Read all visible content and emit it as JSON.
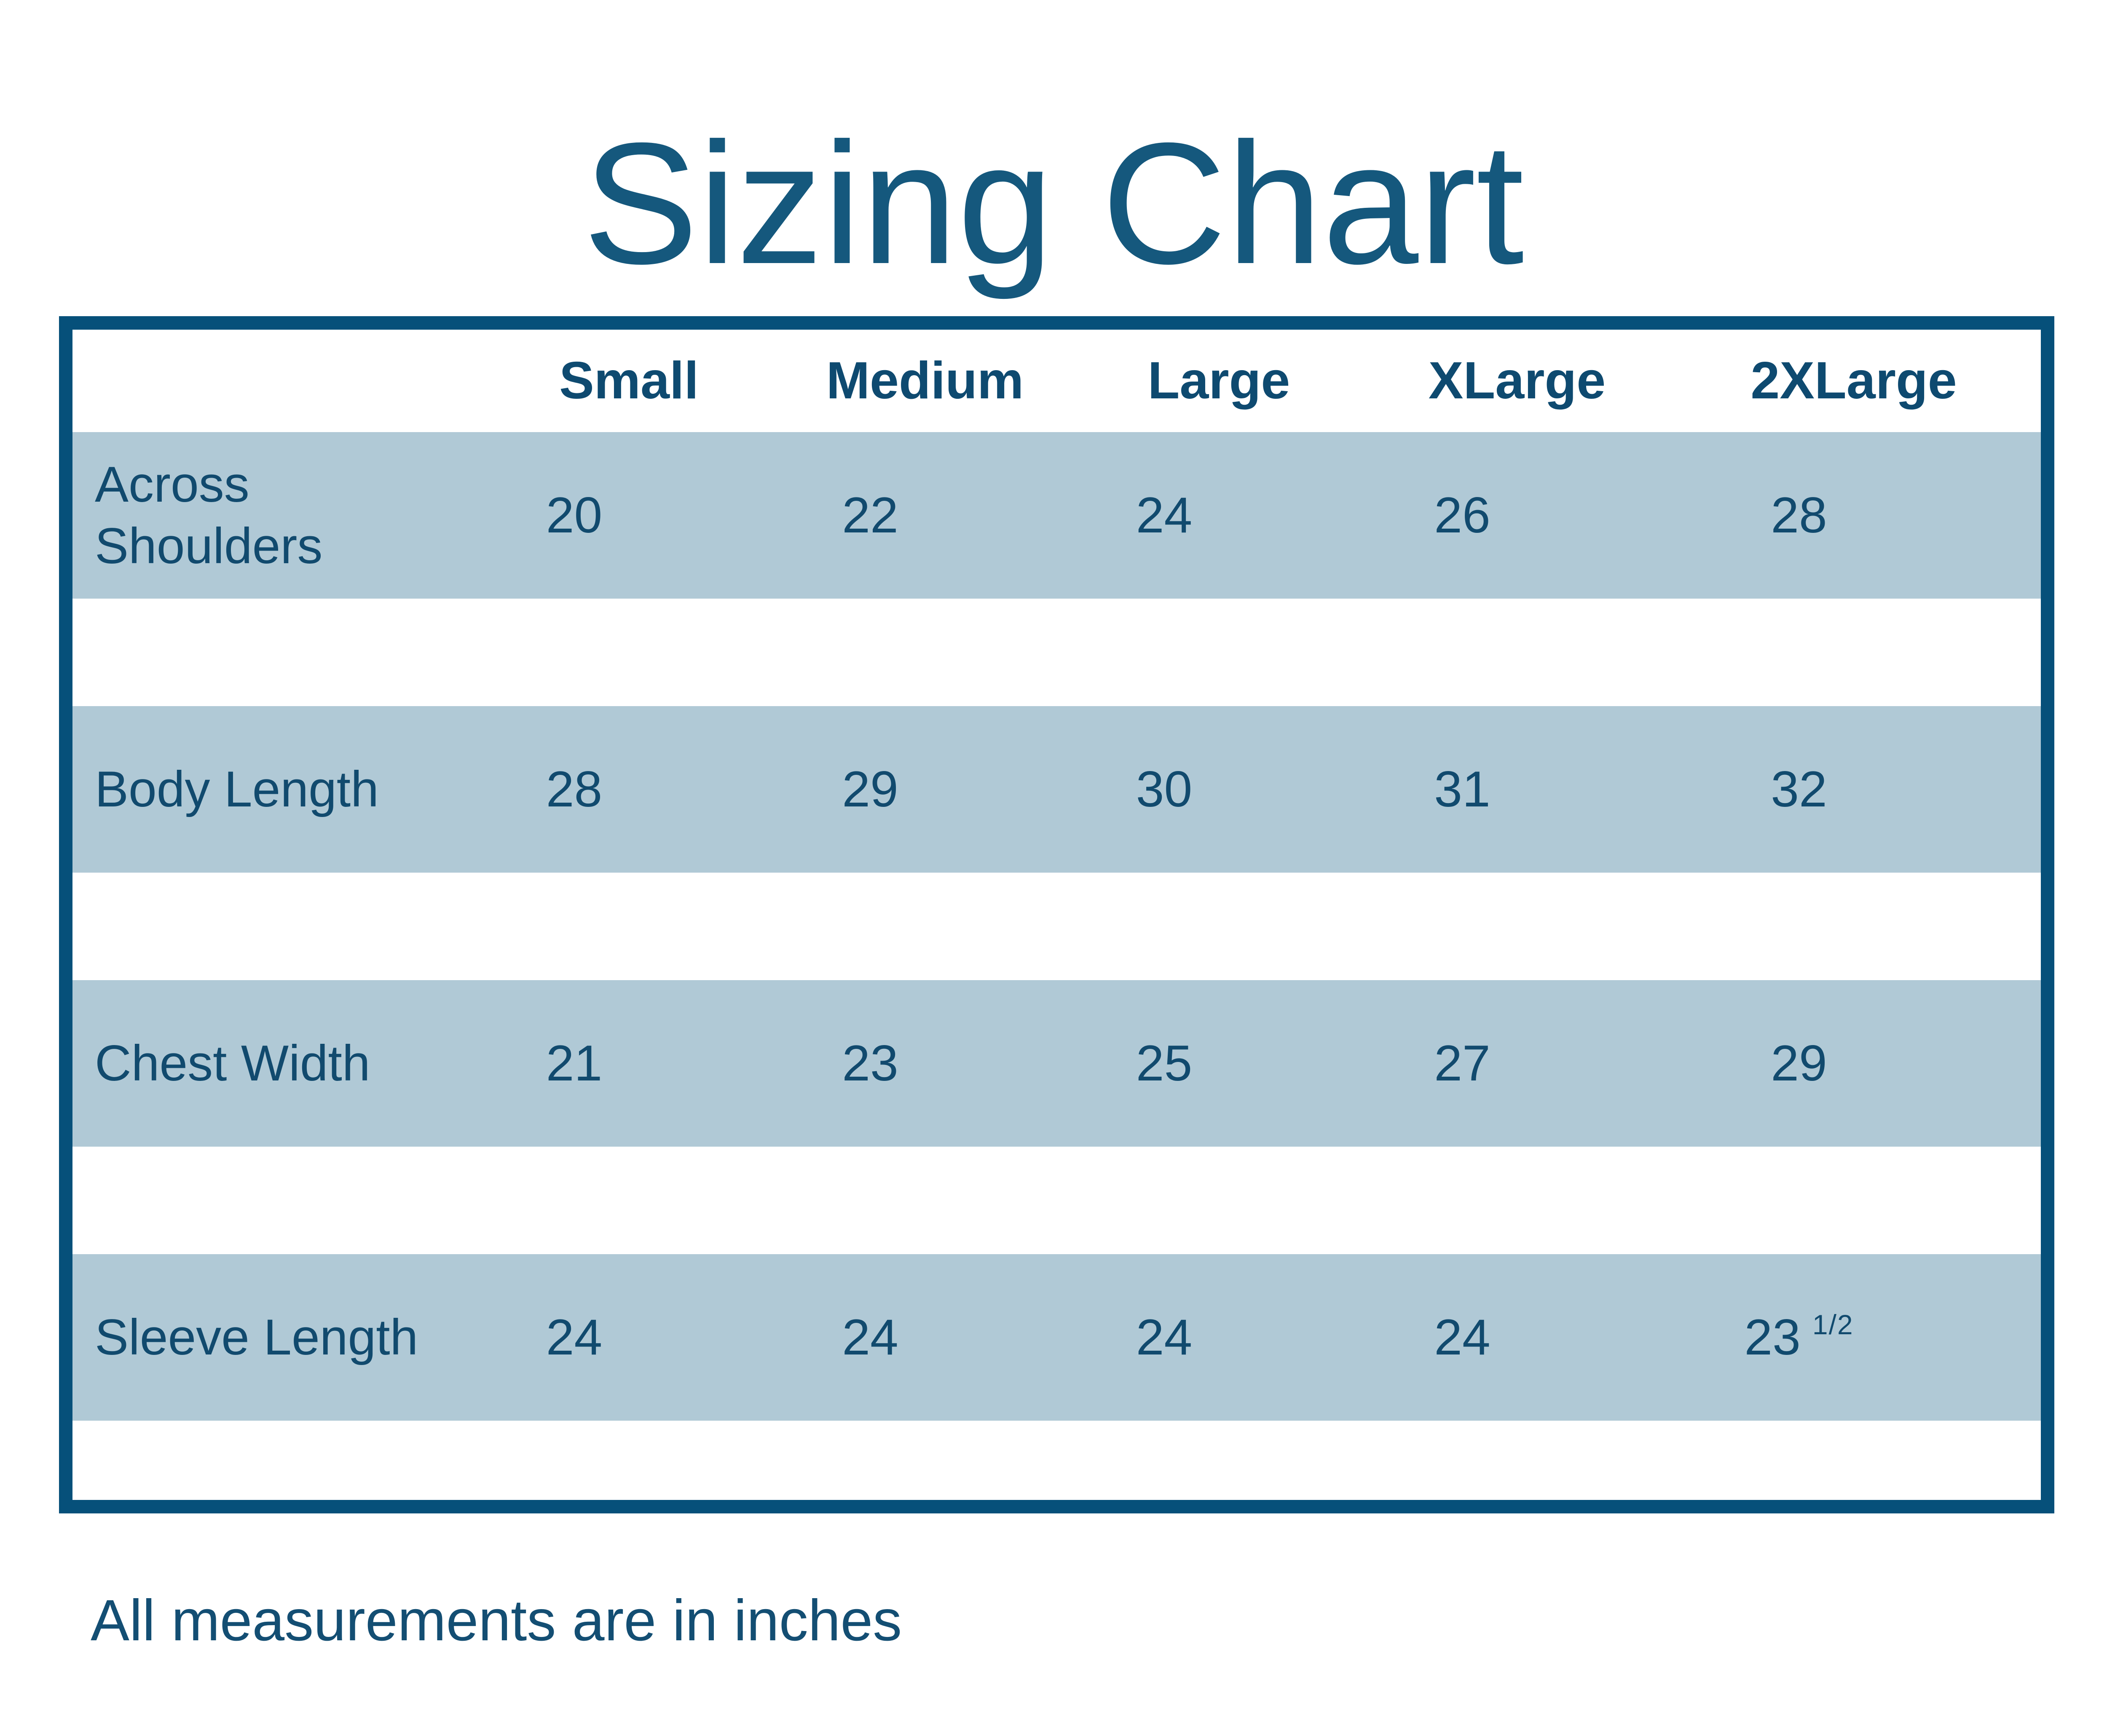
{
  "colors": {
    "background": "#ffffff",
    "title_text": "#15587d",
    "table_text": "#114a6e",
    "header_text": "#0e4a70",
    "table_border": "#06507a",
    "row_stripe": "#b0c9d6",
    "footer_text": "#134e73"
  },
  "chart_data": {
    "type": "table",
    "title": "Sizing Chart",
    "columns": [
      "",
      "Small",
      "Medium",
      "Large",
      "XLarge",
      "2XLarge"
    ],
    "rows": [
      {
        "label": "Across Shoulders",
        "values": [
          "20",
          "22",
          "24",
          "26",
          "28"
        ]
      },
      {
        "label": "Body Length",
        "values": [
          "28",
          "29",
          "30",
          "31",
          "32"
        ]
      },
      {
        "label": "Chest Width",
        "values": [
          "21",
          "23",
          "25",
          "27",
          "29"
        ]
      },
      {
        "label": "Sleeve Length",
        "values": [
          "24",
          "24",
          "24",
          "24",
          "23 1/2"
        ]
      }
    ],
    "display": {
      "sleeve_2xlarge_base": "23",
      "sleeve_2xlarge_superscript": "1/2"
    },
    "note": "All measurements are in inches",
    "layout": {
      "striped_rows": true,
      "grid_lines": "off",
      "header_position": "top"
    }
  }
}
